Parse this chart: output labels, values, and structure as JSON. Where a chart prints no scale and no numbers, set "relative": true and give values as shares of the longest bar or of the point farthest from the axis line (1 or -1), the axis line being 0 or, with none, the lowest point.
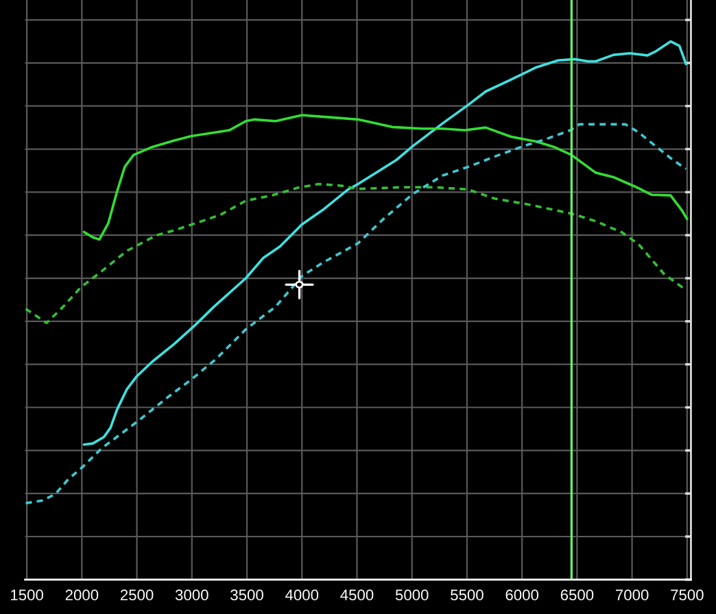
{
  "chart_data": {
    "type": "line",
    "relative": true,
    "grid": true,
    "xlim": [
      1484,
      7535
    ],
    "xticks": [
      1500,
      2000,
      2500,
      3000,
      3500,
      4000,
      4500,
      5000,
      5500,
      6000,
      6500,
      7000,
      7500
    ],
    "series": [
      {
        "color": "#40e0e0",
        "line_style": "solid",
        "x": [
          2020,
          2100,
          2200,
          2260,
          2320,
          2410,
          2500,
          2640,
          2840,
          3030,
          3200,
          3490,
          3650,
          3800,
          4000,
          4190,
          4420,
          4510,
          4860,
          5010,
          5280,
          5510,
          5670,
          5900,
          6130,
          6330,
          6480,
          6600,
          6670,
          6830,
          6980,
          7140,
          7210,
          7350,
          7430,
          7490
        ],
        "values": [
          0.251,
          0.253,
          0.265,
          0.282,
          0.316,
          0.354,
          0.378,
          0.405,
          0.438,
          0.473,
          0.507,
          0.56,
          0.598,
          0.619,
          0.66,
          0.687,
          0.725,
          0.735,
          0.78,
          0.806,
          0.848,
          0.882,
          0.907,
          0.929,
          0.952,
          0.965,
          0.967,
          0.963,
          0.963,
          0.975,
          0.978,
          0.974,
          0.981,
          1.0,
          0.992,
          0.958
        ]
      },
      {
        "color": "#33dd33",
        "line_style": "solid",
        "x": [
          2020,
          2100,
          2160,
          2240,
          2320,
          2390,
          2470,
          2640,
          2840,
          2990,
          3340,
          3490,
          3570,
          3760,
          4000,
          4190,
          4510,
          4820,
          5090,
          5280,
          5480,
          5670,
          5900,
          6130,
          6290,
          6450,
          6670,
          6830,
          7020,
          7180,
          7350,
          7450,
          7500
        ],
        "values": [
          0.646,
          0.636,
          0.632,
          0.662,
          0.721,
          0.767,
          0.789,
          0.804,
          0.816,
          0.824,
          0.835,
          0.852,
          0.855,
          0.852,
          0.863,
          0.86,
          0.855,
          0.841,
          0.838,
          0.838,
          0.835,
          0.84,
          0.823,
          0.814,
          0.804,
          0.789,
          0.756,
          0.748,
          0.731,
          0.715,
          0.714,
          0.687,
          0.67
        ]
      },
      {
        "color": "#33c033",
        "line_style": "dashed",
        "x": [
          1490,
          1680,
          1830,
          1990,
          2180,
          2410,
          2680,
          2840,
          3030,
          3260,
          3490,
          3730,
          3960,
          4150,
          4360,
          4510,
          4900,
          5210,
          5510,
          5750,
          6060,
          6290,
          6450,
          6670,
          6910,
          7060,
          7290,
          7490
        ],
        "values": [
          0.503,
          0.477,
          0.507,
          0.543,
          0.573,
          0.611,
          0.64,
          0.649,
          0.662,
          0.678,
          0.704,
          0.714,
          0.728,
          0.735,
          0.732,
          0.726,
          0.729,
          0.729,
          0.725,
          0.708,
          0.697,
          0.687,
          0.68,
          0.666,
          0.645,
          0.623,
          0.568,
          0.538
        ]
      },
      {
        "color": "#40c8d0",
        "line_style": "dashed",
        "x": [
          1490,
          1640,
          1760,
          1870,
          2010,
          2180,
          2500,
          2800,
          2990,
          3220,
          3490,
          3760,
          4000,
          4190,
          4510,
          4740,
          5010,
          5280,
          5510,
          5790,
          6020,
          6210,
          6440,
          6520,
          6710,
          6940,
          7060,
          7210,
          7370,
          7490
        ],
        "values": [
          0.142,
          0.147,
          0.159,
          0.185,
          0.21,
          0.244,
          0.293,
          0.342,
          0.371,
          0.41,
          0.465,
          0.507,
          0.564,
          0.589,
          0.625,
          0.67,
          0.717,
          0.751,
          0.767,
          0.789,
          0.806,
          0.818,
          0.835,
          0.846,
          0.846,
          0.846,
          0.831,
          0.806,
          0.78,
          0.763
        ]
      }
    ],
    "ref_lines": [
      {
        "axis": "x",
        "value": 6450,
        "color": "#66ee66"
      }
    ]
  }
}
